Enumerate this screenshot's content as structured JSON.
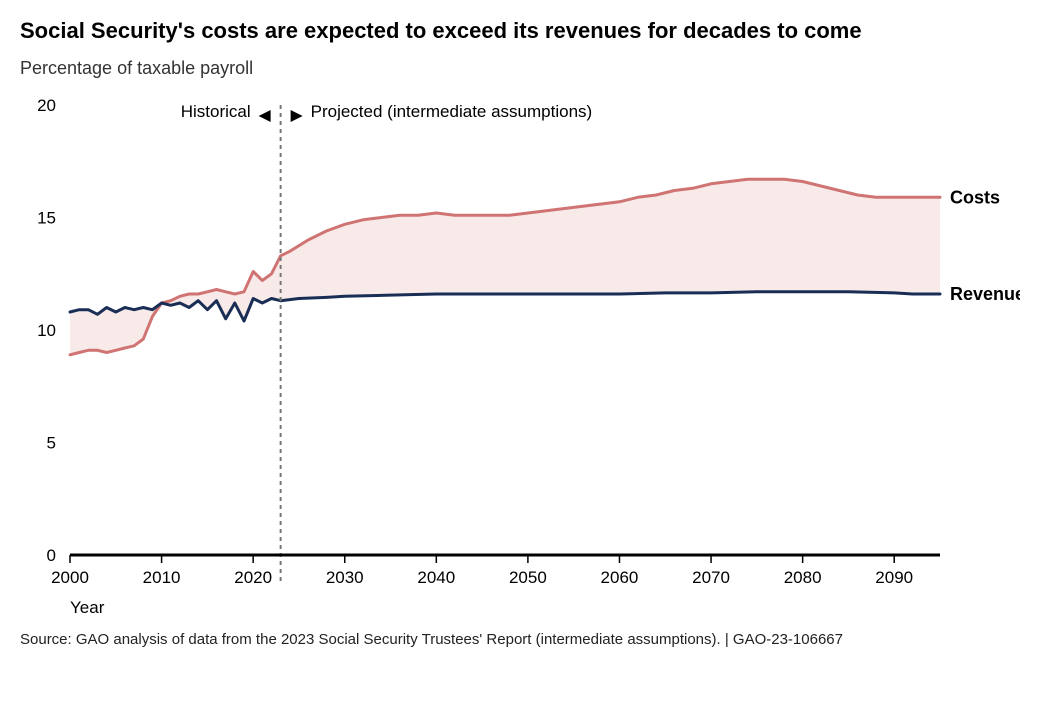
{
  "title": "Social Security's costs are expected to exceed its revenues for decades to come",
  "subtitle": "Percentage of taxable payroll",
  "xlabel": "Year",
  "source": "Source: GAO analysis of data from the 2023 Social Security Trustees' Report (intermediate assumptions).  |  GAO-23-106667",
  "chart": {
    "type": "line-area",
    "xlim": [
      2000,
      2095
    ],
    "ylim": [
      0,
      20
    ],
    "yticks": [
      0,
      5,
      10,
      15,
      20
    ],
    "xticks": [
      2000,
      2010,
      2020,
      2030,
      2040,
      2050,
      2060,
      2070,
      2080,
      2090
    ],
    "divider_x": 2023,
    "annot_left": "Historical",
    "annot_right": "Projected (intermediate assumptions)",
    "background_color": "#ffffff",
    "axis_color": "#000000",
    "axis_width": 3,
    "divider_color": "#777777",
    "divider_width": 2,
    "label_fontsize": 17,
    "title_fontsize": 22,
    "series": {
      "costs": {
        "label": "Costs",
        "color": "#cf7472",
        "fill_color": "#f8eae9",
        "line_width": 3,
        "points": [
          [
            2000,
            8.9
          ],
          [
            2001,
            9.0
          ],
          [
            2002,
            9.1
          ],
          [
            2003,
            9.1
          ],
          [
            2004,
            9.0
          ],
          [
            2005,
            9.1
          ],
          [
            2006,
            9.2
          ],
          [
            2007,
            9.3
          ],
          [
            2008,
            9.6
          ],
          [
            2009,
            10.6
          ],
          [
            2010,
            11.2
          ],
          [
            2011,
            11.3
          ],
          [
            2012,
            11.5
          ],
          [
            2013,
            11.6
          ],
          [
            2014,
            11.6
          ],
          [
            2015,
            11.7
          ],
          [
            2016,
            11.8
          ],
          [
            2017,
            11.7
          ],
          [
            2018,
            11.6
          ],
          [
            2019,
            11.7
          ],
          [
            2020,
            12.6
          ],
          [
            2021,
            12.2
          ],
          [
            2022,
            12.5
          ],
          [
            2023,
            13.3
          ],
          [
            2024,
            13.5
          ],
          [
            2026,
            14.0
          ],
          [
            2028,
            14.4
          ],
          [
            2030,
            14.7
          ],
          [
            2032,
            14.9
          ],
          [
            2034,
            15.0
          ],
          [
            2036,
            15.1
          ],
          [
            2038,
            15.1
          ],
          [
            2040,
            15.2
          ],
          [
            2042,
            15.1
          ],
          [
            2044,
            15.1
          ],
          [
            2046,
            15.1
          ],
          [
            2048,
            15.1
          ],
          [
            2050,
            15.2
          ],
          [
            2052,
            15.3
          ],
          [
            2054,
            15.4
          ],
          [
            2056,
            15.5
          ],
          [
            2058,
            15.6
          ],
          [
            2060,
            15.7
          ],
          [
            2062,
            15.9
          ],
          [
            2064,
            16.0
          ],
          [
            2066,
            16.2
          ],
          [
            2068,
            16.3
          ],
          [
            2070,
            16.5
          ],
          [
            2072,
            16.6
          ],
          [
            2074,
            16.7
          ],
          [
            2076,
            16.7
          ],
          [
            2078,
            16.7
          ],
          [
            2080,
            16.6
          ],
          [
            2082,
            16.4
          ],
          [
            2084,
            16.2
          ],
          [
            2086,
            16.0
          ],
          [
            2088,
            15.9
          ],
          [
            2090,
            15.9
          ],
          [
            2092,
            15.9
          ],
          [
            2094,
            15.9
          ],
          [
            2095,
            15.9
          ]
        ]
      },
      "revenue": {
        "label": "Revenue",
        "color": "#1a2e55",
        "line_width": 3,
        "points": [
          [
            2000,
            10.8
          ],
          [
            2001,
            10.9
          ],
          [
            2002,
            10.9
          ],
          [
            2003,
            10.7
          ],
          [
            2004,
            11.0
          ],
          [
            2005,
            10.8
          ],
          [
            2006,
            11.0
          ],
          [
            2007,
            10.9
          ],
          [
            2008,
            11.0
          ],
          [
            2009,
            10.9
          ],
          [
            2010,
            11.2
          ],
          [
            2011,
            11.1
          ],
          [
            2012,
            11.2
          ],
          [
            2013,
            11.0
          ],
          [
            2014,
            11.3
          ],
          [
            2015,
            10.9
          ],
          [
            2016,
            11.3
          ],
          [
            2017,
            10.5
          ],
          [
            2018,
            11.2
          ],
          [
            2019,
            10.4
          ],
          [
            2020,
            11.4
          ],
          [
            2021,
            11.2
          ],
          [
            2022,
            11.4
          ],
          [
            2023,
            11.3
          ],
          [
            2025,
            11.4
          ],
          [
            2028,
            11.45
          ],
          [
            2030,
            11.5
          ],
          [
            2035,
            11.55
          ],
          [
            2040,
            11.6
          ],
          [
            2045,
            11.6
          ],
          [
            2050,
            11.6
          ],
          [
            2055,
            11.6
          ],
          [
            2060,
            11.6
          ],
          [
            2065,
            11.65
          ],
          [
            2070,
            11.65
          ],
          [
            2075,
            11.7
          ],
          [
            2080,
            11.7
          ],
          [
            2085,
            11.7
          ],
          [
            2090,
            11.65
          ],
          [
            2092,
            11.6
          ],
          [
            2095,
            11.6
          ]
        ]
      }
    }
  }
}
